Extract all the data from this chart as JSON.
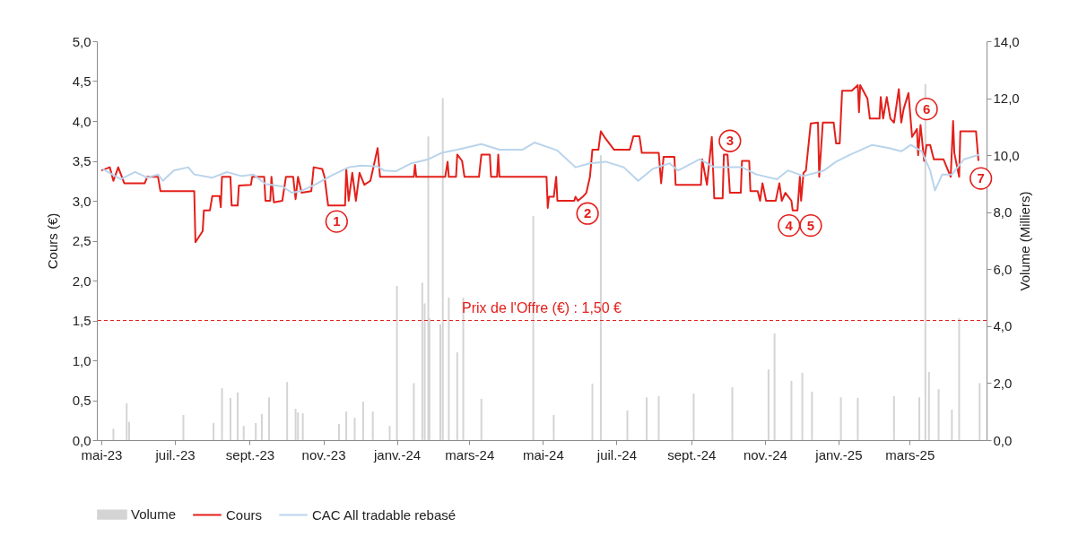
{
  "chart_data": {
    "type": "line",
    "ylabel": "Cours (€)",
    "y2label": "Volume (Milliers)",
    "legend": "bottom",
    "grid": false,
    "xlim": [
      "2023-05-01",
      "2025-04-30"
    ],
    "xticks": [
      {
        "value": "2023-05-01",
        "label": "mai-23"
      },
      {
        "value": "2023-07-01",
        "label": "juil.-23"
      },
      {
        "value": "2023-09-01",
        "label": "sept.-23"
      },
      {
        "value": "2023-11-01",
        "label": "nov.-23"
      },
      {
        "value": "2024-01-01",
        "label": "janv.-24"
      },
      {
        "value": "2024-03-01",
        "label": "mars-24"
      },
      {
        "value": "2024-05-01",
        "label": "mai-24"
      },
      {
        "value": "2024-07-01",
        "label": "juil.-24"
      },
      {
        "value": "2024-09-01",
        "label": "sept.-24"
      },
      {
        "value": "2024-11-01",
        "label": "nov.-24"
      },
      {
        "value": "2025-01-01",
        "label": "janv.-25"
      },
      {
        "value": "2025-03-01",
        "label": "mars-25"
      }
    ],
    "ylim": [
      0,
      5
    ],
    "yticks": [
      {
        "value": 0,
        "label": "0,0"
      },
      {
        "value": 0.5,
        "label": "0,5"
      },
      {
        "value": 1,
        "label": "1,0"
      },
      {
        "value": 1.5,
        "label": "1,5"
      },
      {
        "value": 2,
        "label": "2,0"
      },
      {
        "value": 2.5,
        "label": "2,5"
      },
      {
        "value": 3,
        "label": "3,0"
      },
      {
        "value": 3.5,
        "label": "3,5"
      },
      {
        "value": 4,
        "label": "4,0"
      },
      {
        "value": 4.5,
        "label": "4,5"
      },
      {
        "value": 5,
        "label": "5,0"
      }
    ],
    "y2lim": [
      0,
      14
    ],
    "y2ticks": [
      {
        "value": 0,
        "label": "0,0"
      },
      {
        "value": 2,
        "label": "2,0"
      },
      {
        "value": 4,
        "label": "4,0"
      },
      {
        "value": 6,
        "label": "6,0"
      },
      {
        "value": 8,
        "label": "8,0"
      },
      {
        "value": 10,
        "label": "10,0"
      },
      {
        "value": 12,
        "label": "12,0"
      },
      {
        "value": 14,
        "label": "14,0"
      }
    ],
    "ref_lines": [
      {
        "axis": "y",
        "value": 1.5,
        "label": "Prix de l'Offre (€) : 1,50 €",
        "color": "#e3201b",
        "line_style": "dashed"
      }
    ],
    "annotations": [
      {
        "text": "1",
        "x": "2023-11-12",
        "y": 2.74
      },
      {
        "text": "2",
        "x": "2024-06-07",
        "y": 2.84
      },
      {
        "text": "3",
        "x": "2024-10-03",
        "y": 3.75
      },
      {
        "text": "4",
        "x": "2024-11-21",
        "y": 2.69
      },
      {
        "text": "5",
        "x": "2024-12-09",
        "y": 2.69
      },
      {
        "text": "6",
        "x": "2025-03-15",
        "y": 4.15
      },
      {
        "text": "7",
        "x": "2025-04-29",
        "y": 3.28
      }
    ],
    "series": [
      {
        "name": "Volume",
        "type": "bar",
        "axis": "y2",
        "color": "#d4d4d4",
        "x": [
          "2023-05-11",
          "2023-05-22",
          "2023-05-24",
          "2023-07-08",
          "2023-08-02",
          "2023-08-09",
          "2023-08-16",
          "2023-08-22",
          "2023-08-27",
          "2023-09-06",
          "2023-09-11",
          "2023-09-17",
          "2023-10-02",
          "2023-10-09",
          "2023-10-11",
          "2023-10-15",
          "2023-11-14",
          "2023-11-20",
          "2023-11-27",
          "2023-12-04",
          "2023-12-12",
          "2023-12-26",
          "2024-01-01",
          "2024-01-15",
          "2024-01-22",
          "2024-01-24",
          "2024-01-27",
          "2024-01-28",
          "2024-02-06",
          "2024-02-08",
          "2024-02-13",
          "2024-02-20",
          "2024-02-25",
          "2024-03-11",
          "2024-04-23",
          "2024-05-10",
          "2024-06-11",
          "2024-06-18",
          "2024-07-10",
          "2024-07-26",
          "2024-08-05",
          "2024-09-03",
          "2024-10-05",
          "2024-11-04",
          "2024-11-09",
          "2024-11-23",
          "2024-12-02",
          "2024-12-10",
          "2025-01-03",
          "2025-01-17",
          "2025-02-16",
          "2025-03-09",
          "2025-03-14",
          "2025-03-17",
          "2025-03-25",
          "2025-04-05",
          "2025-04-11",
          "2025-04-28"
        ],
        "values": [
          0.4,
          1.29,
          0.64,
          0.88,
          0.6,
          1.82,
          1.48,
          1.67,
          0.5,
          0.6,
          0.91,
          1.5,
          2.04,
          1.1,
          0.97,
          0.94,
          0.57,
          1.0,
          0.78,
          1.35,
          1.0,
          0.5,
          5.41,
          2.0,
          5.53,
          4.8,
          10.66,
          4.28,
          4.06,
          12.0,
          5.0,
          3.08,
          5.0,
          1.45,
          7.86,
          0.88,
          1.98,
          10.0,
          1.04,
          1.5,
          1.54,
          1.63,
          1.86,
          2.48,
          3.74,
          2.08,
          2.36,
          1.7,
          1.5,
          1.48,
          1.54,
          1.5,
          12.5,
          2.39,
          1.79,
          1.07,
          4.28,
          2.0
        ]
      },
      {
        "name": "Cours",
        "color": "#e3201b",
        "x": [
          "2023-05-01",
          "2023-05-08",
          "2023-05-11",
          "2023-05-15",
          "2023-05-20",
          "2023-06-06",
          "2023-06-08",
          "2023-06-17",
          "2023-06-19",
          "2023-07-17",
          "2023-07-18",
          "2023-07-24",
          "2023-07-25",
          "2023-07-30",
          "2023-08-01",
          "2023-08-07",
          "2023-08-08",
          "2023-08-09",
          "2023-08-16",
          "2023-08-17",
          "2023-08-22",
          "2023-08-23",
          "2023-09-02",
          "2023-09-03",
          "2023-09-13",
          "2023-09-14",
          "2023-09-18",
          "2023-09-19",
          "2023-09-21",
          "2023-09-28",
          "2023-10-01",
          "2023-10-07",
          "2023-10-09",
          "2023-10-11",
          "2023-10-14",
          "2023-10-22",
          "2023-10-24",
          "2023-10-31",
          "2023-11-02",
          "2023-11-05",
          "2023-11-19",
          "2023-11-20",
          "2023-11-22",
          "2023-11-25",
          "2023-11-28",
          "2023-12-01",
          "2023-12-05",
          "2023-12-10",
          "2023-12-16",
          "2023-12-18",
          "2024-01-15",
          "2024-01-16",
          "2024-01-17",
          "2024-02-10",
          "2024-02-12",
          "2024-02-13",
          "2024-02-19",
          "2024-02-20",
          "2024-02-24",
          "2024-02-26",
          "2024-03-09",
          "2024-03-11",
          "2024-03-18",
          "2024-03-19",
          "2024-03-24",
          "2024-03-25",
          "2024-03-26",
          "2024-05-04",
          "2024-05-05",
          "2024-05-06",
          "2024-05-10",
          "2024-05-12",
          "2024-05-13",
          "2024-05-27",
          "2024-05-28",
          "2024-05-30",
          "2024-06-03",
          "2024-06-06",
          "2024-06-09",
          "2024-06-11",
          "2024-06-16",
          "2024-06-18",
          "2024-06-21",
          "2024-06-29",
          "2024-07-12",
          "2024-07-15",
          "2024-07-20",
          "2024-07-22",
          "2024-08-05",
          "2024-08-07",
          "2024-08-09",
          "2024-08-18",
          "2024-08-19",
          "2024-09-09",
          "2024-09-10",
          "2024-09-14",
          "2024-09-16",
          "2024-09-18",
          "2024-09-20",
          "2024-09-27",
          "2024-09-28",
          "2024-10-01",
          "2024-10-03",
          "2024-10-12",
          "2024-10-13",
          "2024-10-19",
          "2024-10-20",
          "2024-10-26",
          "2024-10-28",
          "2024-10-30",
          "2024-11-02",
          "2024-11-10",
          "2024-11-13",
          "2024-11-15",
          "2024-11-18",
          "2024-11-23",
          "2024-11-24",
          "2024-11-28",
          "2024-11-30",
          "2024-12-01",
          "2024-12-03",
          "2024-12-05",
          "2024-12-09",
          "2024-12-15",
          "2024-12-16",
          "2024-12-19",
          "2024-12-28",
          "2024-12-30",
          "2025-01-02",
          "2025-01-04",
          "2025-01-12",
          "2025-01-17",
          "2025-01-18",
          "2025-01-19",
          "2025-01-25",
          "2025-01-27",
          "2025-02-04",
          "2025-02-05",
          "2025-02-07",
          "2025-02-10",
          "2025-02-13",
          "2025-02-16",
          "2025-02-20",
          "2025-02-22",
          "2025-02-24",
          "2025-02-28",
          "2025-03-03",
          "2025-03-07",
          "2025-03-08",
          "2025-03-10",
          "2025-03-13",
          "2025-03-15",
          "2025-03-18",
          "2025-03-21",
          "2025-03-29",
          "2025-04-04",
          "2025-04-06",
          "2025-04-07",
          "2025-04-11",
          "2025-04-12",
          "2025-04-25",
          "2025-04-27"
        ],
        "values": [
          3.38,
          3.42,
          3.25,
          3.42,
          3.22,
          3.22,
          3.3,
          3.3,
          3.12,
          3.12,
          2.48,
          2.62,
          2.88,
          2.88,
          3.06,
          3.06,
          2.92,
          3.3,
          3.3,
          2.94,
          2.94,
          3.19,
          3.2,
          3.3,
          3.3,
          3.0,
          3.0,
          3.3,
          2.98,
          3.0,
          3.3,
          3.3,
          3.02,
          3.3,
          3.1,
          3.12,
          3.42,
          3.4,
          3.3,
          2.94,
          2.94,
          3.4,
          3.0,
          3.35,
          3.0,
          3.35,
          3.2,
          3.25,
          3.66,
          3.3,
          3.3,
          3.45,
          3.3,
          3.3,
          3.49,
          3.3,
          3.3,
          3.58,
          3.5,
          3.3,
          3.3,
          3.58,
          3.58,
          3.3,
          3.3,
          3.58,
          3.3,
          3.3,
          2.91,
          3.05,
          3.05,
          3.3,
          3.0,
          3.0,
          3.05,
          3.0,
          3.05,
          3.1,
          3.3,
          3.64,
          3.64,
          3.87,
          3.8,
          3.64,
          3.64,
          3.81,
          3.81,
          3.6,
          3.6,
          3.22,
          3.55,
          3.55,
          3.2,
          3.2,
          3.52,
          3.2,
          3.5,
          3.8,
          3.03,
          3.03,
          3.58,
          3.58,
          3.1,
          3.1,
          3.5,
          3.5,
          3.12,
          3.12,
          3.0,
          3.22,
          3.0,
          3.0,
          3.22,
          3.0,
          3.1,
          3.0,
          2.88,
          2.88,
          3.3,
          3.0,
          3.35,
          3.38,
          3.97,
          3.98,
          3.3,
          3.98,
          3.98,
          3.72,
          3.72,
          4.38,
          4.38,
          4.45,
          4.11,
          4.45,
          4.28,
          4.03,
          4.03,
          4.3,
          4.03,
          4.3,
          4.03,
          3.98,
          4.4,
          3.98,
          4.15,
          4.35,
          3.8,
          3.9,
          3.57,
          3.95,
          3.5,
          3.7,
          3.7,
          3.52,
          3.52,
          3.3,
          4.0,
          3.6,
          3.3,
          3.87,
          3.87,
          3.5
        ]
      },
      {
        "name": "CAC All tradable rebasé",
        "color": "#b9d4ec",
        "x": [
          "2023-05-02",
          "2023-05-10",
          "2023-05-17",
          "2023-05-29",
          "2023-06-08",
          "2023-06-17",
          "2023-06-21",
          "2023-06-30",
          "2023-07-12",
          "2023-07-17",
          "2023-08-01",
          "2023-08-13",
          "2023-08-25",
          "2023-09-04",
          "2023-09-14",
          "2023-09-28",
          "2023-10-06",
          "2023-10-13",
          "2023-10-26",
          "2023-11-07",
          "2023-11-22",
          "2023-12-02",
          "2023-12-16",
          "2023-12-21",
          "2023-12-31",
          "2024-01-13",
          "2024-01-27",
          "2024-02-07",
          "2024-02-20",
          "2024-03-11",
          "2024-03-26",
          "2024-04-14",
          "2024-04-24",
          "2024-05-13",
          "2024-05-28",
          "2024-06-09",
          "2024-06-22",
          "2024-07-07",
          "2024-07-19",
          "2024-07-31",
          "2024-08-14",
          "2024-08-21",
          "2024-09-08",
          "2024-09-20",
          "2024-10-13",
          "2024-10-25",
          "2024-11-11",
          "2024-11-20",
          "2024-12-03",
          "2024-12-20",
          "2024-12-30",
          "2025-01-11",
          "2025-01-29",
          "2025-02-12",
          "2025-02-22",
          "2025-03-02",
          "2025-03-11",
          "2025-03-18",
          "2025-03-22",
          "2025-03-28",
          "2025-04-05",
          "2025-04-15",
          "2025-04-28"
        ],
        "values": [
          3.4,
          3.33,
          3.27,
          3.36,
          3.29,
          3.33,
          3.25,
          3.38,
          3.42,
          3.33,
          3.29,
          3.36,
          3.31,
          3.33,
          3.21,
          3.18,
          3.1,
          3.12,
          3.21,
          3.31,
          3.42,
          3.44,
          3.43,
          3.38,
          3.37,
          3.47,
          3.52,
          3.6,
          3.64,
          3.71,
          3.64,
          3.64,
          3.73,
          3.63,
          3.42,
          3.47,
          3.49,
          3.42,
          3.25,
          3.4,
          3.47,
          3.38,
          3.52,
          3.42,
          3.42,
          3.33,
          3.27,
          3.38,
          3.31,
          3.38,
          3.49,
          3.58,
          3.7,
          3.66,
          3.62,
          3.7,
          3.62,
          3.38,
          3.13,
          3.33,
          3.33,
          3.52,
          3.58
        ]
      }
    ]
  }
}
